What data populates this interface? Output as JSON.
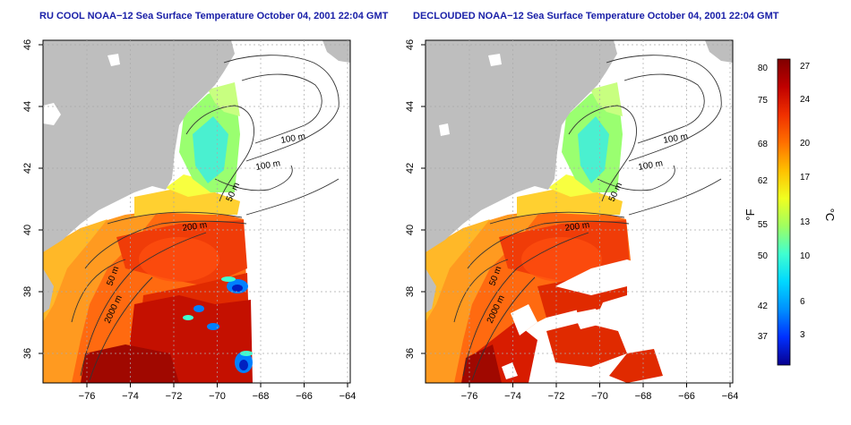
{
  "panels": [
    {
      "title": "RU COOL NOAA−12 Sea Surface Temperature October 04, 2001 22:04 GMT",
      "decloud": false
    },
    {
      "title": "DECLOUDED NOAA−12 Sea Surface Temperature October 04, 2001 22:04 GMT",
      "decloud": true
    }
  ],
  "axes": {
    "x_ticks": [
      "−76",
      "−74",
      "−72",
      "−70",
      "−68",
      "−66",
      "−64"
    ],
    "y_ticks": [
      "36",
      "38",
      "40",
      "42",
      "44",
      "46"
    ]
  },
  "isobath_labels": [
    "100 m",
    "100 m",
    "50 m",
    "200 m",
    "50 m",
    "2000 m"
  ],
  "colorbar": {
    "unit_left": "°F",
    "unit_right": "°C",
    "fahrenheit_ticks": [
      "80",
      "75",
      "68",
      "62",
      "55",
      "50",
      "42",
      "37"
    ],
    "celsius_ticks": [
      "27",
      "24",
      "20",
      "17",
      "13",
      "10",
      "6",
      "3"
    ],
    "colors": [
      "#08008f",
      "#0030ff",
      "#0090ff",
      "#00d8ff",
      "#40ffd0",
      "#a0ff60",
      "#f0ff20",
      "#ffc000",
      "#ff7000",
      "#f03000",
      "#c00000",
      "#800000"
    ]
  },
  "colors": {
    "land": "#bebebe",
    "title": "#1a20a8"
  }
}
